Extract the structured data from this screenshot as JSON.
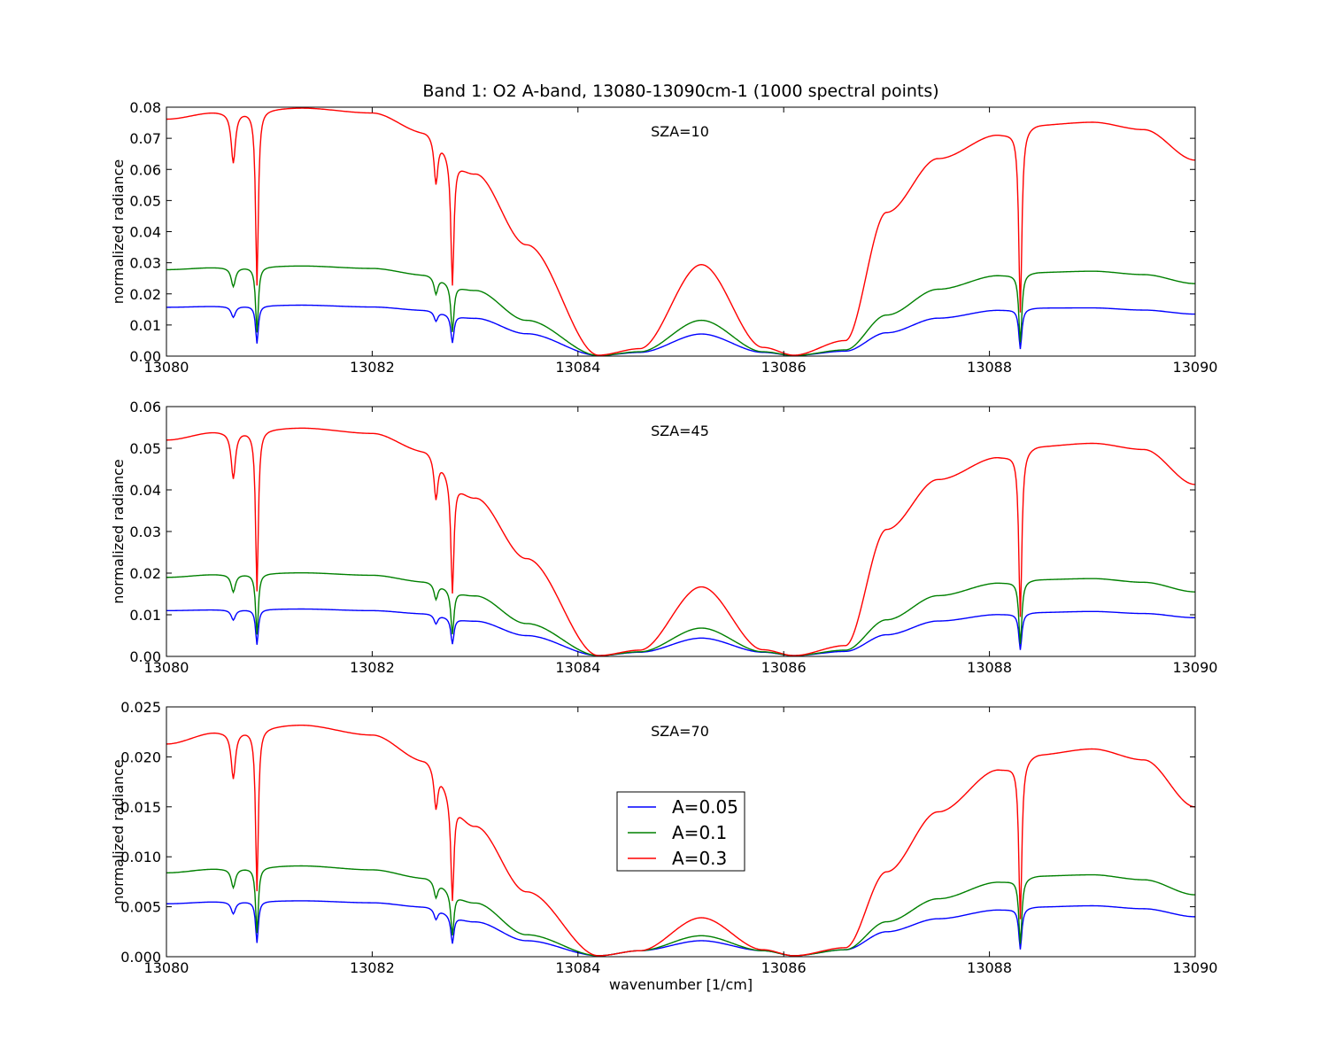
{
  "chart_data": {
    "type": "line",
    "title": "Band 1: O2 A-band, 13080-13090cm-1 (1000 spectral points)",
    "xlabel": "wavenumber [1/cm]",
    "ylabel": "normalized radiance",
    "xlim": [
      13080,
      13090
    ],
    "x_ticks": [
      "13080",
      "13082",
      "13084",
      "13086",
      "13088",
      "13090"
    ],
    "legend": {
      "placement": "center",
      "entries": [
        "A=0.05",
        "A=0.1",
        "A=0.3"
      ]
    },
    "series_colors": [
      "#0000ff",
      "#008000",
      "#ff0000"
    ],
    "line_shape": {
      "lines": [
        {
          "x": 13080.65,
          "depth": 0.22,
          "width": 0.025
        },
        {
          "x": 13080.88,
          "depth": 0.75,
          "width": 0.016
        },
        {
          "x": 13082.62,
          "depth": 0.22,
          "width": 0.022
        },
        {
          "x": 13082.78,
          "depth": 0.68,
          "width": 0.018
        },
        {
          "x": 13088.3,
          "depth": 0.85,
          "width": 0.018
        }
      ],
      "trough": {
        "left_start": 13082.5,
        "left_min": 13084.15,
        "center_peak": 13085.18,
        "right_min": 13086.1,
        "right_end": 13087.0
      }
    },
    "panels": [
      {
        "annotation": "SZA=10",
        "ylim": [
          0,
          0.08
        ],
        "y_ticks": [
          "0.00",
          "0.01",
          "0.02",
          "0.03",
          "0.04",
          "0.05",
          "0.06",
          "0.07",
          "0.08"
        ],
        "series": [
          {
            "name": "A=0.05",
            "x": [
              13080,
              13080.5,
              13081.3,
              13082.0,
              13082.5,
              13083.0,
              13083.5,
              13084.2,
              13084.6,
              13085.2,
              13085.8,
              13086.1,
              13086.6,
              13087.0,
              13087.5,
              13088.1,
              13088.5,
              13089.0,
              13089.5,
              13090.0
            ],
            "y": [
              0.0157,
              0.016,
              0.0164,
              0.0158,
              0.0148,
              0.0122,
              0.0072,
              0.0002,
              0.0012,
              0.0071,
              0.0012,
              0.0002,
              0.0016,
              0.0075,
              0.0122,
              0.0148,
              0.0155,
              0.0155,
              0.0148,
              0.0135
            ]
          },
          {
            "name": "A=0.1",
            "x": [
              13080,
              13080.5,
              13081.3,
              13082.0,
              13082.5,
              13083.0,
              13083.5,
              13084.2,
              13084.6,
              13085.2,
              13085.8,
              13086.1,
              13086.6,
              13087.0,
              13087.5,
              13088.1,
              13088.5,
              13089.0,
              13089.5,
              13090.0
            ],
            "y": [
              0.0278,
              0.0285,
              0.029,
              0.0282,
              0.0262,
              0.0212,
              0.0115,
              0.0002,
              0.0014,
              0.0115,
              0.0014,
              0.0002,
              0.002,
              0.0132,
              0.0215,
              0.026,
              0.027,
              0.0273,
              0.0262,
              0.0233
            ]
          },
          {
            "name": "A=0.3",
            "x": [
              13080,
              13080.5,
              13081.3,
              13082.0,
              13082.5,
              13083.0,
              13083.5,
              13084.2,
              13084.6,
              13085.2,
              13085.8,
              13086.1,
              13086.6,
              13087.0,
              13087.5,
              13088.1,
              13088.5,
              13089.0,
              13089.5,
              13090.0
            ],
            "y": [
              0.0762,
              0.0785,
              0.0798,
              0.0782,
              0.0722,
              0.0588,
              0.0358,
              0.0003,
              0.0024,
              0.0294,
              0.0028,
              0.0003,
              0.005,
              0.0462,
              0.0635,
              0.0714,
              0.0745,
              0.0752,
              0.0728,
              0.063
            ]
          }
        ]
      },
      {
        "annotation": "SZA=45",
        "ylim": [
          0,
          0.06
        ],
        "y_ticks": [
          "0.00",
          "0.01",
          "0.02",
          "0.03",
          "0.04",
          "0.05",
          "0.06"
        ],
        "series": [
          {
            "name": "A=0.05",
            "x": [
              13080,
              13080.5,
              13081.3,
              13082.0,
              13082.5,
              13083.0,
              13083.5,
              13084.2,
              13084.6,
              13085.2,
              13085.8,
              13086.1,
              13086.6,
              13087.0,
              13087.5,
              13088.1,
              13088.5,
              13089.0,
              13089.5,
              13090.0
            ],
            "y": [
              0.011,
              0.0112,
              0.0114,
              0.011,
              0.0103,
              0.0085,
              0.005,
              0.0002,
              0.001,
              0.0044,
              0.001,
              0.0002,
              0.0012,
              0.0052,
              0.0085,
              0.0101,
              0.0106,
              0.0108,
              0.0103,
              0.0093
            ]
          },
          {
            "name": "A=0.1",
            "x": [
              13080,
              13080.5,
              13081.3,
              13082.0,
              13082.5,
              13083.0,
              13083.5,
              13084.2,
              13084.6,
              13085.2,
              13085.8,
              13086.1,
              13086.6,
              13087.0,
              13087.5,
              13088.1,
              13088.5,
              13089.0,
              13089.5,
              13090.0
            ],
            "y": [
              0.019,
              0.0197,
              0.0201,
              0.0195,
              0.018,
              0.0146,
              0.0079,
              0.0002,
              0.0011,
              0.0068,
              0.0011,
              0.0002,
              0.0015,
              0.0088,
              0.0146,
              0.0177,
              0.0185,
              0.0187,
              0.0178,
              0.0155
            ]
          },
          {
            "name": "A=0.3",
            "x": [
              13080,
              13080.5,
              13081.3,
              13082.0,
              13082.5,
              13083.0,
              13083.5,
              13084.2,
              13084.6,
              13085.2,
              13085.8,
              13086.1,
              13086.6,
              13087.0,
              13087.5,
              13088.1,
              13088.5,
              13089.0,
              13089.5,
              13090.0
            ],
            "y": [
              0.052,
              0.054,
              0.0549,
              0.0536,
              0.0495,
              0.0382,
              0.0235,
              0.0002,
              0.0015,
              0.0167,
              0.0016,
              0.0002,
              0.0026,
              0.0305,
              0.0425,
              0.048,
              0.0506,
              0.0512,
              0.0497,
              0.0413
            ]
          }
        ]
      },
      {
        "annotation": "SZA=70",
        "ylim": [
          0,
          0.025
        ],
        "y_ticks": [
          "0.000",
          "0.005",
          "0.010",
          "0.015",
          "0.020",
          "0.025"
        ],
        "series": [
          {
            "name": "A=0.05",
            "x": [
              13080,
              13080.5,
              13081.3,
              13082.0,
              13082.5,
              13083.0,
              13083.5,
              13084.2,
              13084.6,
              13085.2,
              13085.8,
              13086.1,
              13086.6,
              13087.0,
              13087.5,
              13088.1,
              13088.5,
              13089.0,
              13089.5,
              13090.0
            ],
            "y": [
              0.0053,
              0.0055,
              0.0056,
              0.0054,
              0.005,
              0.0035,
              0.0016,
              0.0001,
              0.0006,
              0.0016,
              0.0006,
              0.0001,
              0.0007,
              0.0025,
              0.0038,
              0.0047,
              0.005,
              0.0051,
              0.0048,
              0.004
            ]
          },
          {
            "name": "A=0.1",
            "x": [
              13080,
              13080.5,
              13081.3,
              13082.0,
              13082.5,
              13083.0,
              13083.5,
              13084.2,
              13084.6,
              13085.2,
              13085.8,
              13086.1,
              13086.6,
              13087.0,
              13087.5,
              13088.1,
              13088.5,
              13089.0,
              13089.5,
              13090.0
            ],
            "y": [
              0.0084,
              0.0088,
              0.0091,
              0.0087,
              0.0079,
              0.0054,
              0.0022,
              0.0001,
              0.0006,
              0.0021,
              0.0006,
              0.0001,
              0.0007,
              0.0035,
              0.0058,
              0.0075,
              0.0081,
              0.0082,
              0.0077,
              0.0062
            ]
          },
          {
            "name": "A=0.3",
            "x": [
              13080,
              13080.5,
              13081.3,
              13082.0,
              13082.5,
              13083.0,
              13083.5,
              13084.2,
              13084.6,
              13085.2,
              13085.8,
              13086.1,
              13086.6,
              13087.0,
              13087.5,
              13088.1,
              13088.5,
              13089.0,
              13089.5,
              13090.0
            ],
            "y": [
              0.0213,
              0.0225,
              0.0232,
              0.0222,
              0.0197,
              0.0131,
              0.0065,
              0.0001,
              0.0006,
              0.0039,
              0.0007,
              0.0001,
              0.0009,
              0.0085,
              0.0145,
              0.0188,
              0.0203,
              0.0208,
              0.0197,
              0.015
            ]
          }
        ]
      }
    ]
  }
}
